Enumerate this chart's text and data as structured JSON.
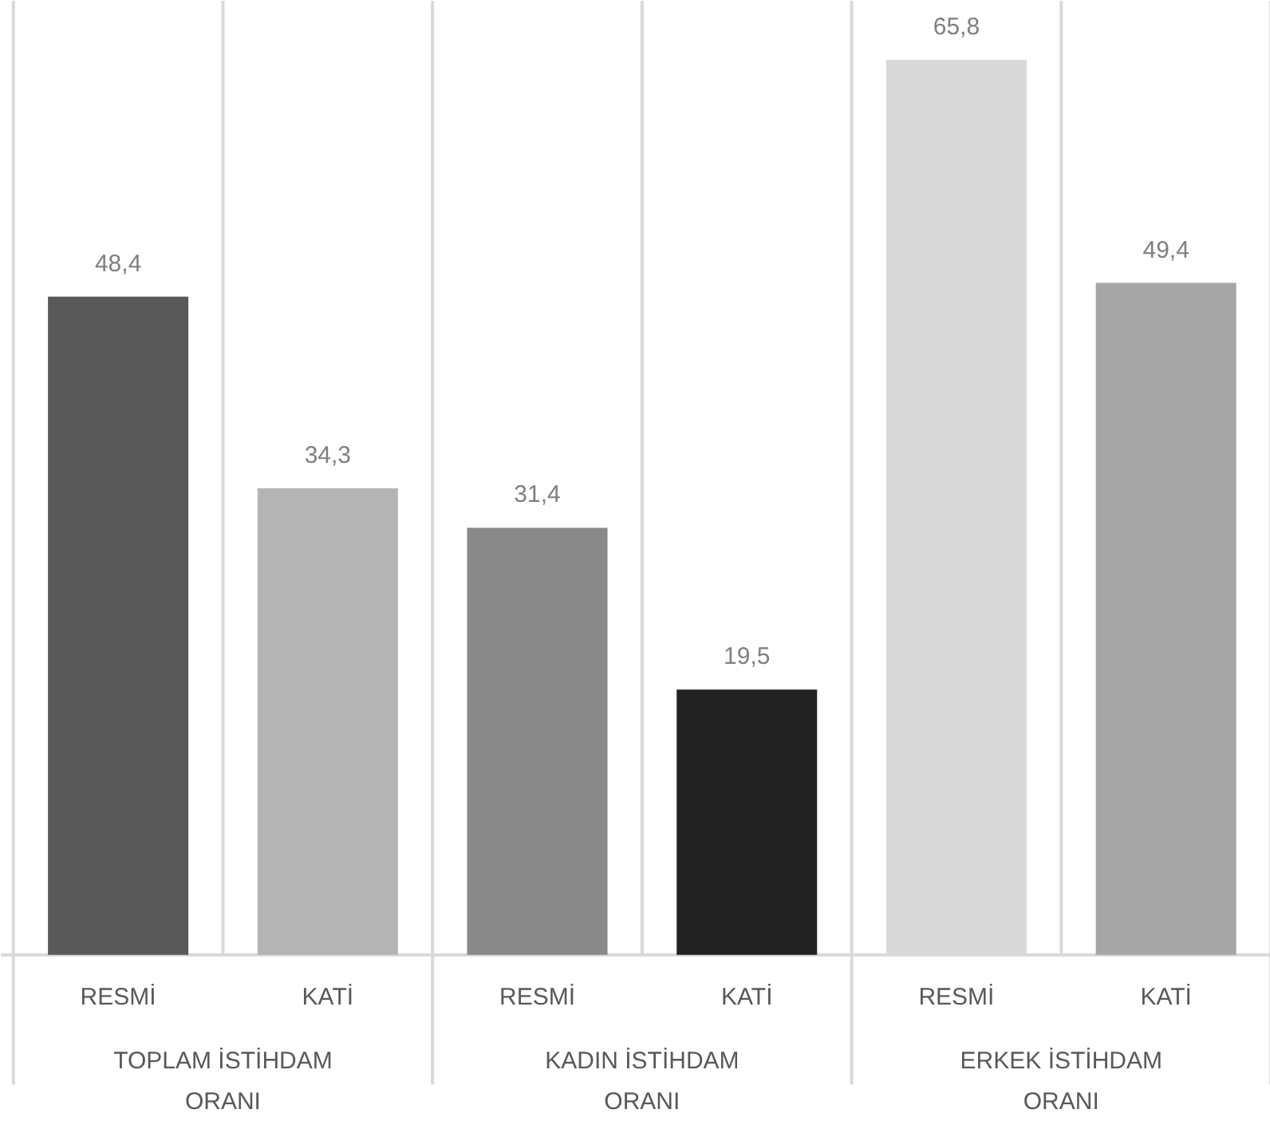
{
  "chart_data": {
    "type": "bar",
    "categories": [
      "RESMİ",
      "KATİ",
      "RESMİ",
      "KATİ",
      "RESMİ",
      "KATİ"
    ],
    "values": [
      48.4,
      34.3,
      31.4,
      19.5,
      65.8,
      49.4
    ],
    "colors": [
      "#595959",
      "#b4b4b4",
      "#898989",
      "#222222",
      "#d9d9d9",
      "#a6a6a6"
    ],
    "value_labels": [
      "48,4",
      "34,3",
      "31,4",
      "19,5",
      "65,8",
      "49,4"
    ],
    "annotations": [
      "TOPLAM İSTİHDAM\nORANI",
      "KADIN İSTİHDAM\nORANI",
      "ERKEK İSTİHDAM\nORANI"
    ]
  }
}
